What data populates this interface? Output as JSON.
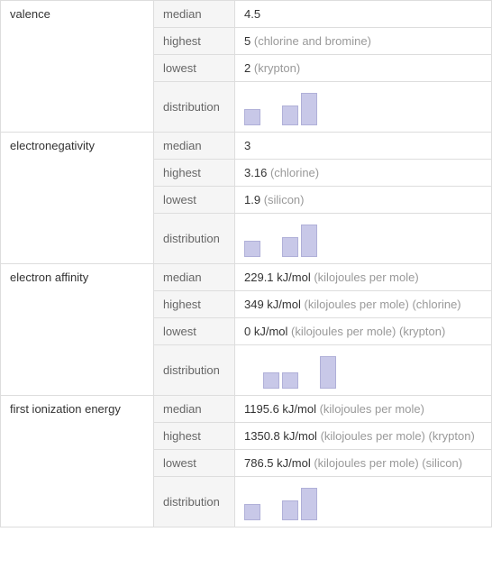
{
  "properties": [
    {
      "name": "valence",
      "rows": [
        {
          "stat": "median",
          "value": "4.5",
          "unit": "",
          "note": ""
        },
        {
          "stat": "highest",
          "value": "5",
          "unit": "",
          "note": "(chlorine and bromine)"
        },
        {
          "stat": "lowest",
          "value": "2",
          "unit": "",
          "note": "(krypton)"
        },
        {
          "stat": "distribution",
          "bars": [
            0.45,
            0,
            0.55,
            0.9
          ],
          "bar_color": "#c8c8e8",
          "bar_border": "#b0b0d8"
        }
      ]
    },
    {
      "name": "electronegativity",
      "rows": [
        {
          "stat": "median",
          "value": "3",
          "unit": "",
          "note": ""
        },
        {
          "stat": "highest",
          "value": "3.16",
          "unit": "",
          "note": "(chlorine)"
        },
        {
          "stat": "lowest",
          "value": "1.9",
          "unit": "",
          "note": "(silicon)"
        },
        {
          "stat": "distribution",
          "bars": [
            0.45,
            0,
            0.55,
            0.9
          ],
          "bar_color": "#c8c8e8",
          "bar_border": "#b0b0d8"
        }
      ]
    },
    {
      "name": "electron affinity",
      "rows": [
        {
          "stat": "median",
          "value": "229.1 kJ/mol",
          "unit": "(kilojoules per mole)",
          "note": ""
        },
        {
          "stat": "highest",
          "value": "349 kJ/mol",
          "unit": "(kilojoules per mole)",
          "note": "(chlorine)"
        },
        {
          "stat": "lowest",
          "value": "0 kJ/mol",
          "unit": "(kilojoules per mole)",
          "note": "(krypton)"
        },
        {
          "stat": "distribution",
          "bars": [
            0,
            0.45,
            0.45,
            0,
            0.9
          ],
          "bar_color": "#c8c8e8",
          "bar_border": "#b0b0d8"
        }
      ]
    },
    {
      "name": "first ionization energy",
      "rows": [
        {
          "stat": "median",
          "value": "1195.6 kJ/mol",
          "unit": "(kilojoules per mole)",
          "note": ""
        },
        {
          "stat": "highest",
          "value": "1350.8 kJ/mol",
          "unit": "(kilojoules per mole)",
          "note": "(krypton)"
        },
        {
          "stat": "lowest",
          "value": "786.5 kJ/mol",
          "unit": "(kilojoules per mole)",
          "note": "(silicon)"
        },
        {
          "stat": "distribution",
          "bars": [
            0.45,
            0,
            0.55,
            0.9
          ],
          "bar_color": "#c8c8e8",
          "bar_border": "#b0b0d8"
        }
      ]
    }
  ]
}
